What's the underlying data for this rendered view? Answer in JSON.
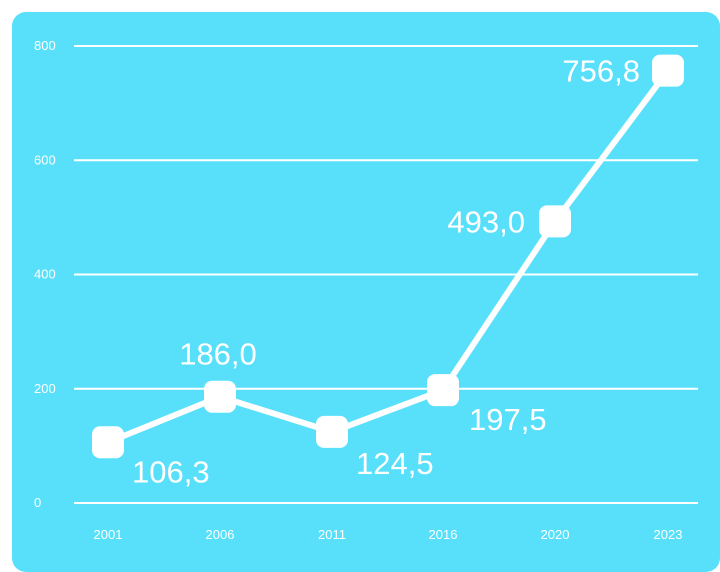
{
  "chart_data": {
    "type": "line",
    "title": "",
    "xlabel": "",
    "ylabel": "",
    "categories": [
      "2001",
      "2006",
      "2011",
      "2016",
      "2020",
      "2023"
    ],
    "series": [
      {
        "values": [
          106.3,
          186.0,
          124.5,
          197.5,
          493.0,
          756.8
        ],
        "labels": [
          "106,3",
          "186,0",
          "124,5",
          "197,5",
          "493,0",
          "756,8"
        ]
      }
    ],
    "yticks": [
      "0",
      "200",
      "400",
      "600",
      "800"
    ],
    "ylim": [
      0,
      800
    ],
    "grid": true,
    "legend": "none",
    "colors": {
      "background": "#58e0fb",
      "line": "#ffffff",
      "grid": "#ffffff",
      "text": "#ffffff"
    }
  }
}
